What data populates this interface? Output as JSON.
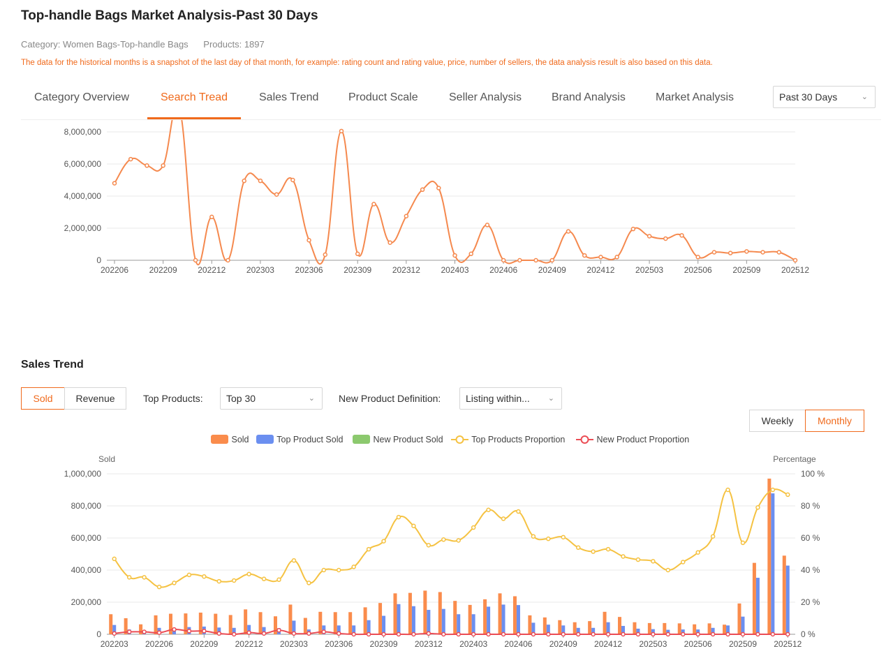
{
  "page": {
    "title": "Top-handle Bags Market Analysis-Past 30 Days",
    "category": "Category:  Women Bags-Top-handle Bags",
    "products": "Products:  1897",
    "notice": "The data for the historical months is a snapshot of the last day of that month, for example: rating count and rating value, price, number of sellers, the data analysis result is also based on this data."
  },
  "tabs": [
    "Category Overview",
    "Search Tread",
    "Sales Trend",
    "Product Scale",
    "Seller Analysis",
    "Brand Analysis",
    "Market Analysis"
  ],
  "active_tab": "Search Tread",
  "period_select": "Past 30 Days",
  "sales_trend": {
    "title": "Sales Trend",
    "metric_buttons": [
      "Sold",
      "Revenue"
    ],
    "top_products_label": "Top Products:",
    "top_products_value": "Top 30",
    "new_product_label": "New Product Definition:",
    "new_product_value": "Listing within...",
    "granularity_buttons": [
      "Weekly",
      "Monthly"
    ],
    "legend": [
      "Sold",
      "Top Product Sold",
      "New Product Sold",
      "Top Products Proportion",
      "New Product Proportion"
    ],
    "left_axis_title": "Sold",
    "right_axis_title": "Percentage"
  },
  "colors": {
    "accent": "#f06a1c",
    "sold": "#fa8c4c",
    "top": "#6b8ff0",
    "new": "#8cc96e",
    "top_prop": "#f5c242",
    "new_prop": "#eb4c54",
    "search_line": "#f5894e"
  },
  "chart_data": [
    {
      "type": "line",
      "title": "",
      "x": [
        "202206",
        "202207",
        "202208",
        "202209",
        "202210",
        "202211",
        "202212",
        "202301",
        "202302",
        "202303",
        "202304",
        "202305",
        "202306",
        "202307",
        "202308",
        "202309",
        "202310",
        "202311",
        "202312",
        "202401",
        "202402",
        "202403",
        "202404",
        "202405",
        "202406",
        "202407",
        "202408",
        "202409",
        "202410",
        "202411",
        "202412",
        "202501",
        "202502",
        "202503",
        "202504",
        "202505",
        "202506",
        "202507",
        "202508",
        "202509",
        "202510",
        "202511",
        "202512"
      ],
      "x_tick_labels": [
        "202206",
        "202209",
        "202212",
        "202303",
        "202306",
        "202309",
        "202312",
        "202403",
        "202406",
        "202409",
        "202412",
        "202503",
        "202506",
        "202509",
        "202512"
      ],
      "y_ticks": [
        "0",
        "2,000,000",
        "4,000,000",
        "6,000,000",
        "8,000,000"
      ],
      "ylim": [
        0,
        8000000
      ],
      "series": [
        {
          "values": [
            4800000,
            6300000,
            5900000,
            5900000,
            9500000,
            0,
            2700000,
            0,
            4950000,
            4950000,
            4100000,
            5000000,
            1250000,
            350000,
            8050000,
            400000,
            3500000,
            1100000,
            2750000,
            4400000,
            4500000,
            300000,
            400000,
            2200000,
            0,
            0,
            0,
            0,
            1800000,
            300000,
            200000,
            200000,
            1950000,
            1500000,
            1350000,
            1550000,
            200000,
            500000,
            450000,
            550000,
            500000,
            500000,
            0
          ]
        }
      ],
      "grid": true
    },
    {
      "type": "bar",
      "title": "",
      "x": [
        "202203",
        "202204",
        "202205",
        "202206",
        "202207",
        "202208",
        "202209",
        "202210",
        "202211",
        "202212",
        "202301",
        "202302",
        "202303",
        "202304",
        "202305",
        "202306",
        "202307",
        "202308",
        "202309",
        "202310",
        "202311",
        "202312",
        "202401",
        "202402",
        "202403",
        "202404",
        "202405",
        "202406",
        "202407",
        "202408",
        "202409",
        "202410",
        "202411",
        "202412",
        "202501",
        "202502",
        "202503",
        "202504",
        "202505",
        "202506",
        "202507",
        "202508",
        "202509",
        "202510",
        "202511",
        "202512"
      ],
      "x_tick_labels": [
        "202203",
        "202206",
        "202209",
        "202212",
        "202303",
        "202306",
        "202309",
        "202312",
        "202403",
        "202406",
        "202409",
        "202412",
        "202503",
        "202506",
        "202509",
        "202512"
      ],
      "y_left_ticks": [
        "0",
        "200,000",
        "400,000",
        "600,000",
        "800,000",
        "1,000,000"
      ],
      "y_right_ticks": [
        "0 %",
        "20 %",
        "40 %",
        "60 %",
        "80 %",
        "100 %"
      ],
      "ylim_left": [
        0,
        1000000
      ],
      "ylim_right": [
        0,
        100
      ],
      "series": [
        {
          "name": "Sold",
          "kind": "bar",
          "values": [
            125000,
            100000,
            62000,
            118000,
            128000,
            130000,
            135000,
            128000,
            120000,
            155000,
            138000,
            112000,
            185000,
            102000,
            140000,
            138000,
            138000,
            168000,
            195000,
            255000,
            258000,
            272000,
            263000,
            208000,
            183000,
            218000,
            255000,
            237000,
            118000,
            105000,
            88000,
            75000,
            82000,
            140000,
            108000,
            75000,
            70000,
            70000,
            68000,
            62000,
            68000,
            60000,
            192000,
            445000,
            970000,
            490000
          ]
        },
        {
          "name": "Top Product Sold",
          "kind": "bar",
          "values": [
            58000,
            30000,
            15000,
            40000,
            38000,
            45000,
            48000,
            42000,
            40000,
            58000,
            45000,
            38000,
            85000,
            30000,
            55000,
            55000,
            55000,
            88000,
            115000,
            188000,
            175000,
            152000,
            158000,
            125000,
            125000,
            172000,
            185000,
            182000,
            72000,
            60000,
            55000,
            40000,
            40000,
            75000,
            52000,
            35000,
            32000,
            28000,
            30000,
            30000,
            40000,
            55000,
            110000,
            352000,
            878000,
            428000
          ]
        },
        {
          "name": "New Product Sold",
          "kind": "bar",
          "values": [
            0,
            0,
            0,
            0,
            0,
            0,
            0,
            0,
            0,
            0,
            0,
            0,
            0,
            0,
            0,
            0,
            0,
            0,
            0,
            0,
            0,
            0,
            0,
            0,
            0,
            0,
            0,
            0,
            0,
            0,
            0,
            0,
            0,
            0,
            0,
            0,
            0,
            0,
            0,
            0,
            0,
            0,
            0,
            0,
            0,
            0
          ]
        },
        {
          "name": "Top Products Proportion",
          "kind": "line",
          "axis": "right",
          "values": [
            47,
            35.5,
            35.5,
            29.5,
            32,
            37,
            36,
            33,
            33.5,
            37.5,
            34.5,
            34,
            46,
            32,
            40,
            40,
            42,
            53,
            58,
            73,
            67.5,
            55.5,
            59,
            58.5,
            66.5,
            77.5,
            72,
            76.5,
            61,
            59.5,
            60.5,
            54,
            51.5,
            53,
            48.5,
            46.5,
            45.5,
            40,
            45,
            51,
            61,
            90,
            57,
            79,
            90,
            87
          ]
        },
        {
          "name": "New Product Proportion",
          "kind": "line",
          "axis": "right",
          "values": [
            0.5,
            1.5,
            1.5,
            1,
            3,
            2,
            2,
            0.5,
            0,
            1,
            0.5,
            2.5,
            0.5,
            0.5,
            1.5,
            0.5,
            0,
            0,
            0,
            0,
            0,
            0.5,
            0,
            0,
            0,
            0,
            0,
            0,
            0,
            0,
            0,
            0,
            0,
            0,
            0,
            0,
            0,
            0,
            0,
            0,
            0,
            0,
            0,
            0,
            0,
            0
          ]
        }
      ]
    }
  ]
}
